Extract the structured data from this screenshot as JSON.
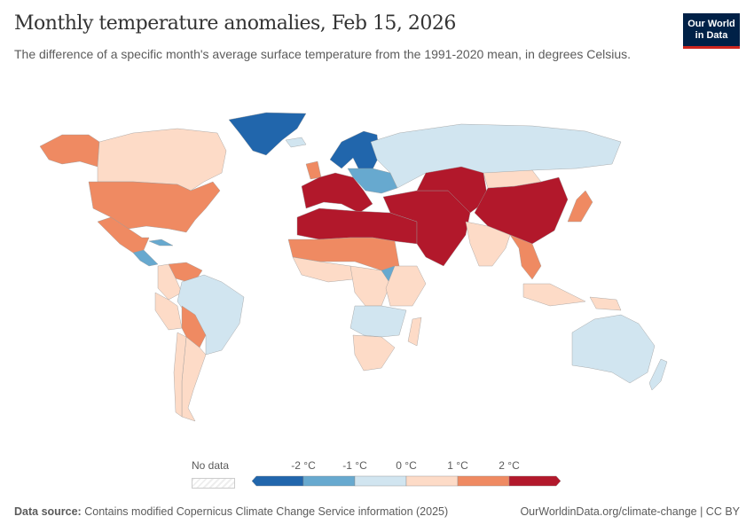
{
  "header": {
    "title": "Monthly temperature anomalies, Feb 15, 2026",
    "subtitle": "The difference of a specific month's average surface temperature from the 1991-2020 mean, in degrees Celsius.",
    "logo": "Our World in Data"
  },
  "legend": {
    "no_data_label": "No data",
    "no_data_color": "#eeeeee",
    "bins": [
      {
        "color": "#2166ac",
        "max": "-2 °C"
      },
      {
        "color": "#67a9cf",
        "max": "-1 °C"
      },
      {
        "color": "#d1e5f0",
        "max": "0 °C"
      },
      {
        "color": "#fddbc7",
        "max": "1 °C"
      },
      {
        "color": "#ef8a62",
        "max": "2 °C"
      },
      {
        "color": "#b2182b"
      }
    ],
    "ticks": [
      "-2 °C",
      "-1 °C",
      "0 °C",
      "1 °C",
      "2 °C"
    ]
  },
  "map": {
    "regions": [
      {
        "name": "Greenland",
        "bin": 0
      },
      {
        "name": "Alaska",
        "bin": 4
      },
      {
        "name": "Canada",
        "bin": 3
      },
      {
        "name": "United States",
        "bin": 4
      },
      {
        "name": "Mexico",
        "bin": 4
      },
      {
        "name": "Central America",
        "bin": 1
      },
      {
        "name": "Cuba",
        "bin": 1
      },
      {
        "name": "Venezuela",
        "bin": 4
      },
      {
        "name": "Colombia",
        "bin": 3
      },
      {
        "name": "Brazil",
        "bin": 2
      },
      {
        "name": "Peru",
        "bin": 3
      },
      {
        "name": "Bolivia",
        "bin": 4
      },
      {
        "name": "Argentina",
        "bin": 3
      },
      {
        "name": "Chile",
        "bin": 3
      },
      {
        "name": "Iceland",
        "bin": 2
      },
      {
        "name": "Scandinavia",
        "bin": 0
      },
      {
        "name": "United Kingdom",
        "bin": 4
      },
      {
        "name": "Western Europe",
        "bin": 5
      },
      {
        "name": "Eastern Europe",
        "bin": 1
      },
      {
        "name": "Russia",
        "bin": 2
      },
      {
        "name": "North Africa",
        "bin": 5
      },
      {
        "name": "Middle East",
        "bin": 5
      },
      {
        "name": "Central Asia",
        "bin": 5
      },
      {
        "name": "China",
        "bin": 5
      },
      {
        "name": "Mongolia",
        "bin": 3
      },
      {
        "name": "India",
        "bin": 3
      },
      {
        "name": "Southeast Asia",
        "bin": 4
      },
      {
        "name": "Japan",
        "bin": 4
      },
      {
        "name": "Sahel",
        "bin": 4
      },
      {
        "name": "West Africa",
        "bin": 3
      },
      {
        "name": "Central Africa",
        "bin": 3
      },
      {
        "name": "South Sudan",
        "bin": 1
      },
      {
        "name": "East Africa",
        "bin": 3
      },
      {
        "name": "Southern Africa",
        "bin": 2
      },
      {
        "name": "South Africa",
        "bin": 3
      },
      {
        "name": "Madagascar",
        "bin": 3
      },
      {
        "name": "Indonesia",
        "bin": 3
      },
      {
        "name": "Papua New Guinea",
        "bin": 3
      },
      {
        "name": "Australia",
        "bin": 2
      },
      {
        "name": "New Zealand",
        "bin": 2
      }
    ]
  },
  "footer": {
    "source_label": "Data source:",
    "source_text": "Contains modified Copernicus Climate Change Service information (2025)",
    "url": "OurWorldinData.org/climate-change | CC BY"
  }
}
